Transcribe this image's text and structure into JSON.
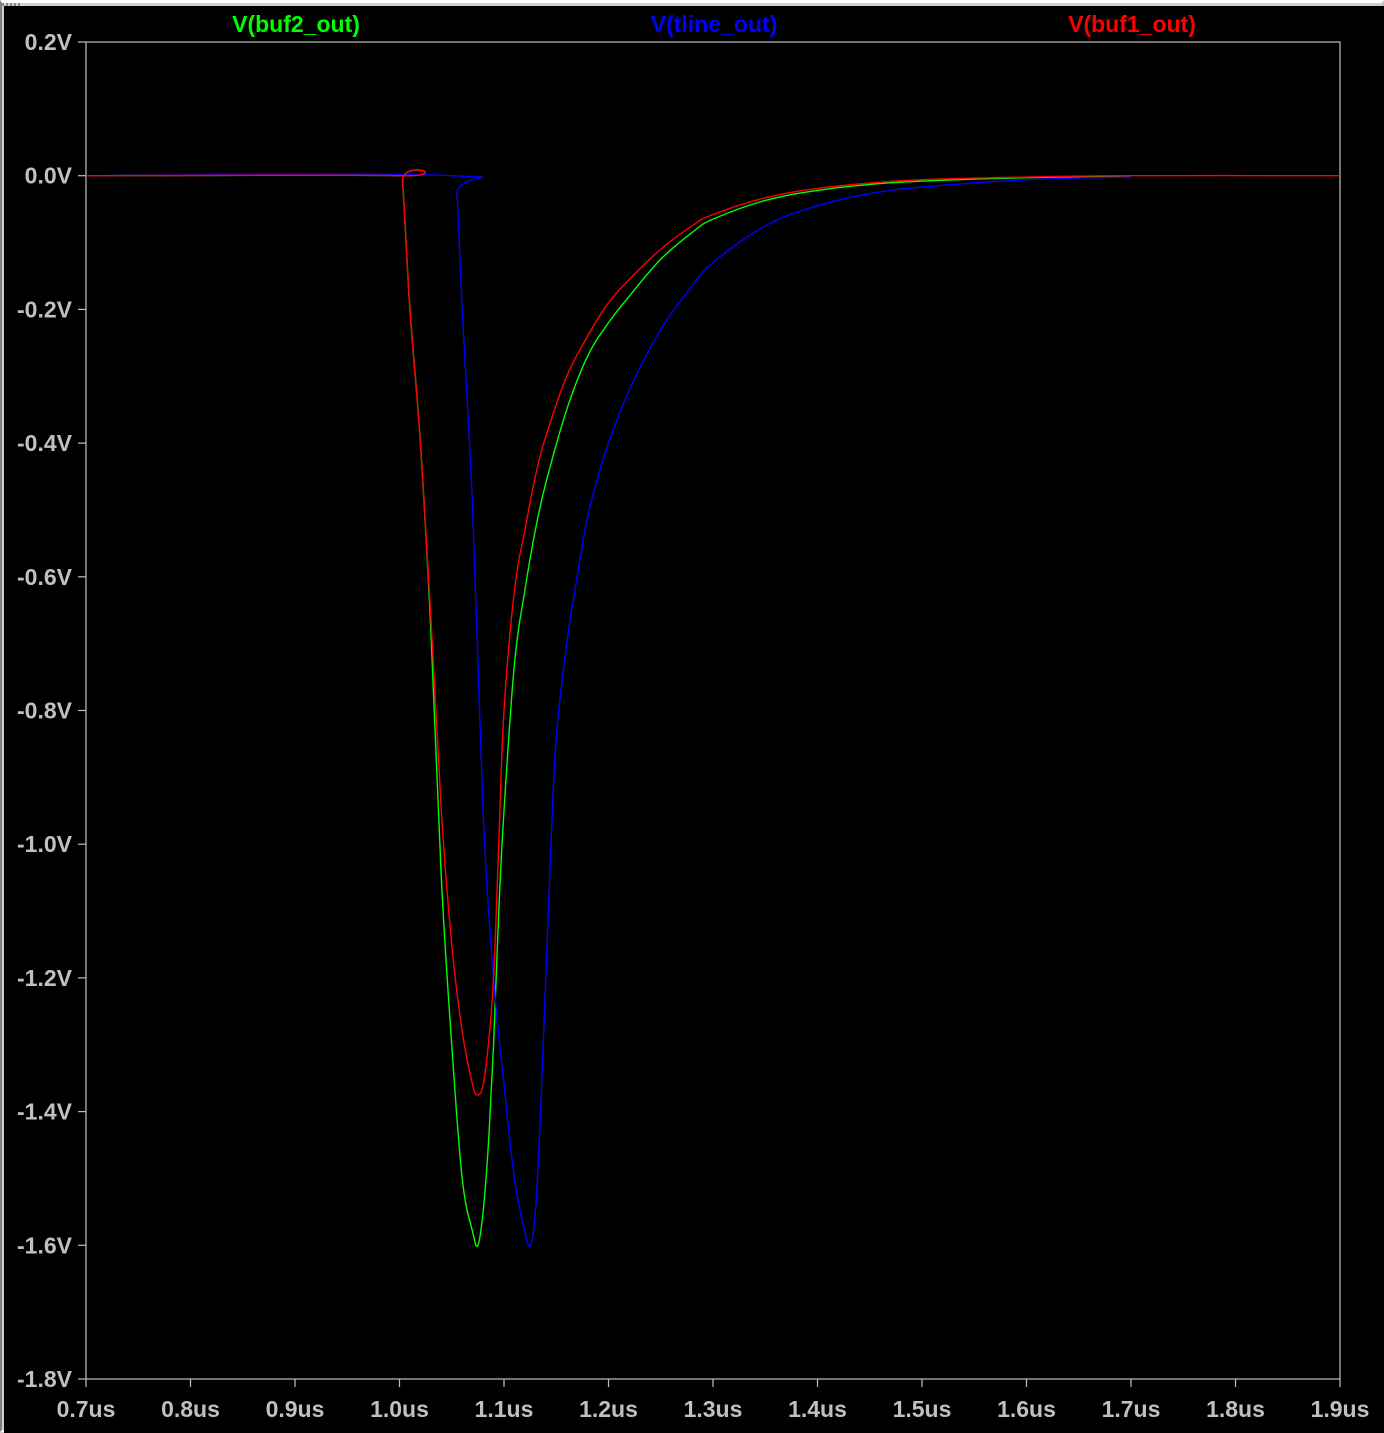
{
  "chart_data": {
    "type": "line",
    "title": "",
    "xlabel": "",
    "ylabel": "",
    "xlim": [
      0.7,
      1.9
    ],
    "ylim": [
      -1.8,
      0.2
    ],
    "grid": false,
    "background": "#000000",
    "axis_color": "#c0c0c0",
    "legend_placement": "top",
    "x_ticks": [
      {
        "value": 0.7,
        "label": "0.7us"
      },
      {
        "value": 0.8,
        "label": "0.8us"
      },
      {
        "value": 0.9,
        "label": "0.9us"
      },
      {
        "value": 1.0,
        "label": "1.0us"
      },
      {
        "value": 1.1,
        "label": "1.1us"
      },
      {
        "value": 1.2,
        "label": "1.2us"
      },
      {
        "value": 1.3,
        "label": "1.3us"
      },
      {
        "value": 1.4,
        "label": "1.4us"
      },
      {
        "value": 1.5,
        "label": "1.5us"
      },
      {
        "value": 1.6,
        "label": "1.6us"
      },
      {
        "value": 1.7,
        "label": "1.7us"
      },
      {
        "value": 1.8,
        "label": "1.8us"
      },
      {
        "value": 1.9,
        "label": "1.9us"
      }
    ],
    "y_ticks": [
      {
        "value": 0.2,
        "label": "0.2V"
      },
      {
        "value": 0.0,
        "label": "0.0V"
      },
      {
        "value": -0.2,
        "label": "-0.2V"
      },
      {
        "value": -0.4,
        "label": "-0.4V"
      },
      {
        "value": -0.6,
        "label": "-0.6V"
      },
      {
        "value": -0.8,
        "label": "-0.8V"
      },
      {
        "value": -1.0,
        "label": "-1.0V"
      },
      {
        "value": -1.2,
        "label": "-1.2V"
      },
      {
        "value": -1.4,
        "label": "-1.4V"
      },
      {
        "value": -1.6,
        "label": "-1.6V"
      },
      {
        "value": -1.8,
        "label": "-1.8V"
      }
    ],
    "series": [
      {
        "name": "V(buf2_out)",
        "color": "#00ff00",
        "x": [
          0.7,
          1.0,
          1.003,
          1.01,
          1.02,
          1.03,
          1.04,
          1.05,
          1.06,
          1.07,
          1.075,
          1.08,
          1.085,
          1.09,
          1.095,
          1.1,
          1.11,
          1.12,
          1.13,
          1.14,
          1.16,
          1.18,
          1.2,
          1.22,
          1.25,
          1.28,
          1.3,
          1.35,
          1.4,
          1.45,
          1.5,
          1.6,
          1.7
        ],
        "y": [
          0.0,
          0.0,
          -0.01,
          -0.2,
          -0.4,
          -0.68,
          -1.05,
          -1.3,
          -1.5,
          -1.58,
          -1.6,
          -1.55,
          -1.45,
          -1.3,
          -1.1,
          -0.95,
          -0.73,
          -0.62,
          -0.53,
          -0.46,
          -0.35,
          -0.27,
          -0.22,
          -0.18,
          -0.125,
          -0.085,
          -0.065,
          -0.037,
          -0.022,
          -0.013,
          -0.008,
          -0.003,
          -0.001
        ]
      },
      {
        "name": "V(tline_out)",
        "color": "#0000ff",
        "x": [
          0.7,
          1.05,
          1.055,
          1.06,
          1.07,
          1.08,
          1.09,
          1.1,
          1.11,
          1.12,
          1.125,
          1.13,
          1.135,
          1.14,
          1.145,
          1.15,
          1.16,
          1.17,
          1.18,
          1.19,
          1.2,
          1.22,
          1.25,
          1.28,
          1.3,
          1.35,
          1.4,
          1.45,
          1.5,
          1.6,
          1.7
        ],
        "y": [
          0.0,
          0.0,
          -0.03,
          -0.2,
          -0.5,
          -0.95,
          -1.2,
          -1.36,
          -1.5,
          -1.58,
          -1.6,
          -1.55,
          -1.4,
          -1.2,
          -1.0,
          -0.84,
          -0.7,
          -0.6,
          -0.51,
          -0.45,
          -0.4,
          -0.32,
          -0.23,
          -0.165,
          -0.13,
          -0.075,
          -0.045,
          -0.027,
          -0.017,
          -0.006,
          -0.002
        ]
      },
      {
        "name": "V(buf1_out)",
        "color": "#ff0000",
        "x": [
          0.7,
          1.0,
          1.003,
          1.01,
          1.02,
          1.03,
          1.04,
          1.05,
          1.06,
          1.07,
          1.075,
          1.08,
          1.085,
          1.09,
          1.095,
          1.1,
          1.11,
          1.12,
          1.13,
          1.14,
          1.16,
          1.18,
          1.2,
          1.22,
          1.25,
          1.28,
          1.3,
          1.35,
          1.4,
          1.45,
          1.5,
          1.6,
          1.7,
          1.9
        ],
        "y": [
          0.0,
          0.0,
          -0.01,
          -0.2,
          -0.4,
          -0.66,
          -0.95,
          -1.15,
          -1.28,
          -1.36,
          -1.375,
          -1.36,
          -1.3,
          -1.2,
          -1.0,
          -0.8,
          -0.62,
          -0.53,
          -0.45,
          -0.39,
          -0.3,
          -0.24,
          -0.19,
          -0.155,
          -0.11,
          -0.075,
          -0.058,
          -0.033,
          -0.019,
          -0.011,
          -0.006,
          -0.002,
          0.0,
          0.0
        ]
      }
    ]
  }
}
